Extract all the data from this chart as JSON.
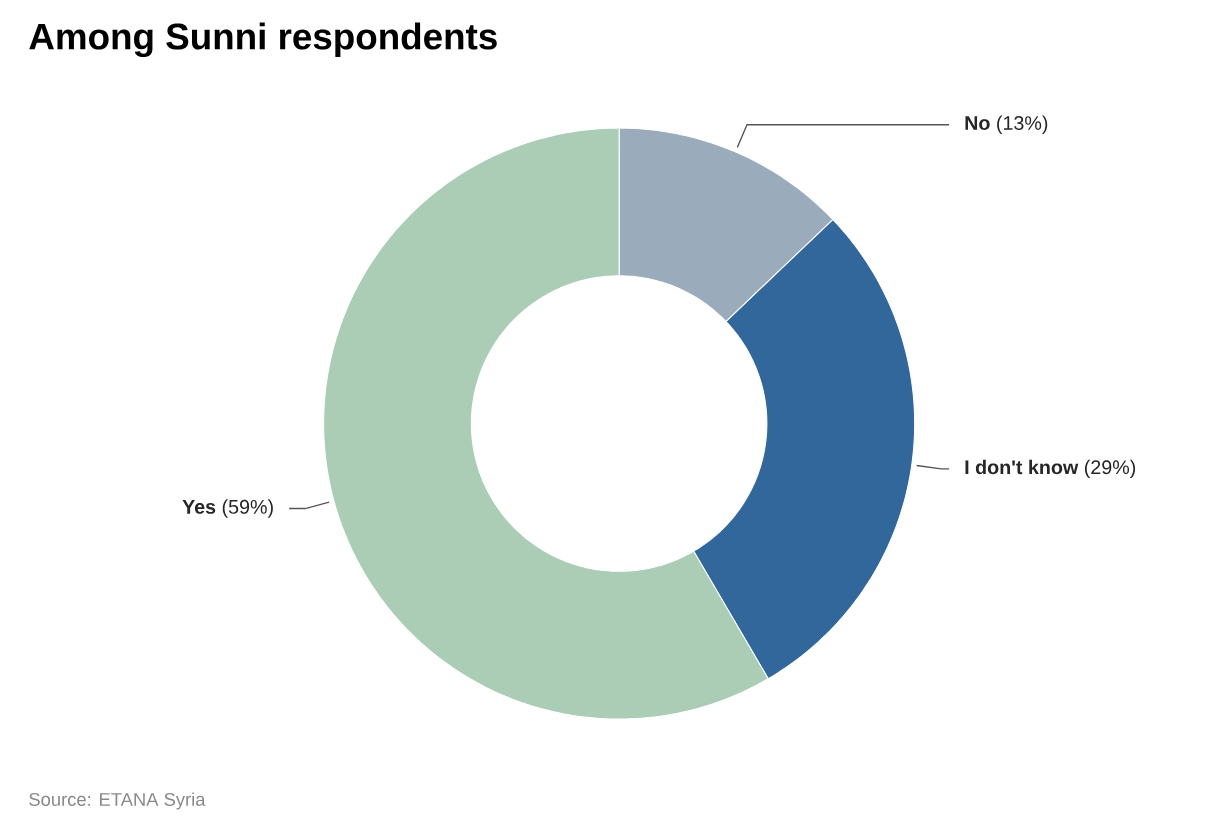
{
  "chart_data": {
    "type": "donut",
    "title": "Among Sunni respondents",
    "categories": [
      "No",
      "I don't know",
      "Yes"
    ],
    "values": [
      13,
      29,
      59
    ],
    "value_labels": [
      "(13%)",
      "(29%)",
      "(59%)"
    ],
    "colors": [
      "#9aabbc",
      "#31679a",
      "#abcdb5"
    ],
    "annotations": [
      "Source: ETANA Syria"
    ]
  }
}
